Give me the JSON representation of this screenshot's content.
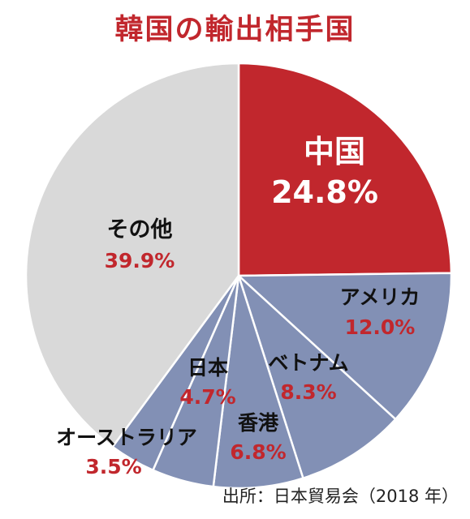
{
  "chart_data": {
    "type": "pie",
    "title": "韓国の輸出相手国",
    "source": "出所：日本貿易会（2018 年）",
    "slices": [
      {
        "label": "中国",
        "value": 24.8,
        "value_label": "24.8%",
        "color": "#c1272d"
      },
      {
        "label": "アメリカ",
        "value": 12.0,
        "value_label": "12.0%",
        "color": "#8290b5"
      },
      {
        "label": "ベトナム",
        "value": 8.3,
        "value_label": "8.3%",
        "color": "#8290b5"
      },
      {
        "label": "香港",
        "value": 6.8,
        "value_label": "6.8%",
        "color": "#8290b5"
      },
      {
        "label": "日本",
        "value": 4.7,
        "value_label": "4.7%",
        "color": "#8290b5"
      },
      {
        "label": "オーストラリア",
        "value": 3.5,
        "value_label": "3.5%",
        "color": "#8290b5"
      },
      {
        "label": "その他",
        "value": 39.9,
        "value_label": "39.9%",
        "color": "#d9d9d9"
      }
    ],
    "colors": {
      "title": "#c1272d",
      "highlight_text": "#ffffff",
      "value_text": "#c1272d",
      "name_text": "#111111"
    }
  }
}
